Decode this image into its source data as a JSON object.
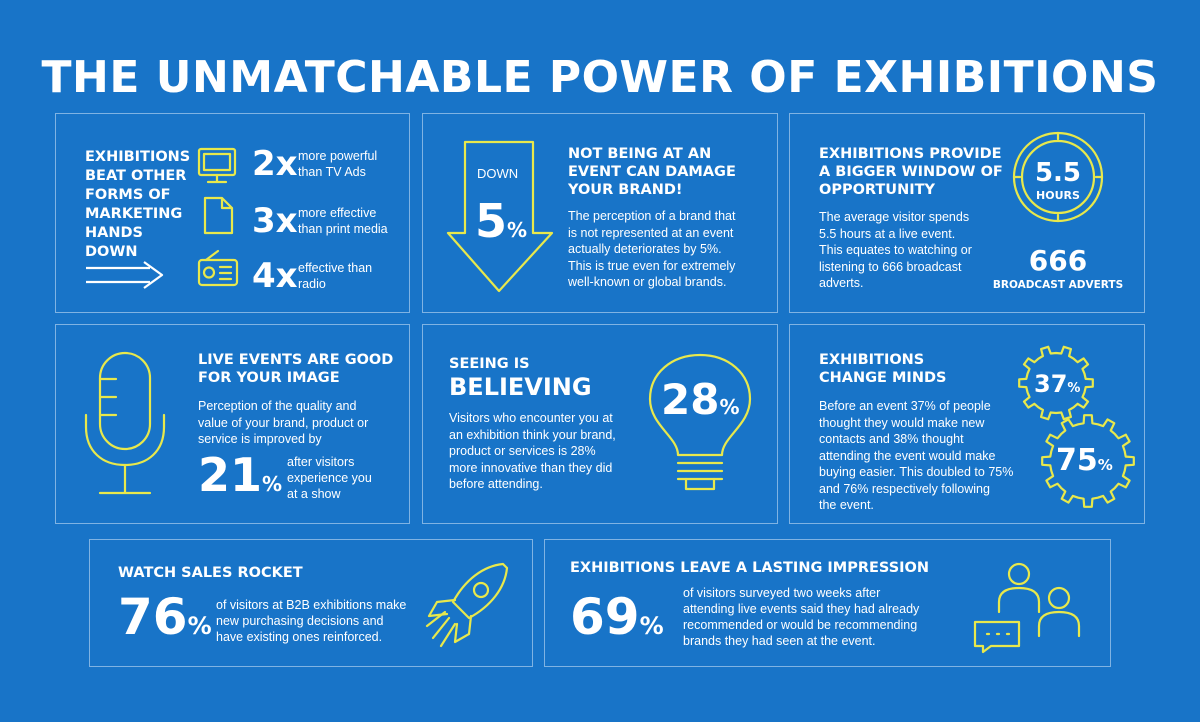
{
  "title": "THE UNMATCHABLE POWER OF EXHIBITIONS",
  "colors": {
    "background": "#1874c8",
    "accent": "#e8e84c",
    "text": "#ffffff",
    "border": "#7fb3e3"
  },
  "panel1": {
    "heading": [
      "EXHIBITIONS",
      "BEAT OTHER",
      "FORMS OF",
      "MARKETING",
      "HANDS",
      "DOWN"
    ],
    "rows": [
      {
        "icon": "monitor-icon",
        "value": "2x",
        "text": [
          "more powerful",
          "than TV Ads"
        ]
      },
      {
        "icon": "document-icon",
        "value": "3x",
        "text": [
          "more effective",
          "than print media"
        ]
      },
      {
        "icon": "radio-icon",
        "value": "4x",
        "text": [
          "effective than",
          "radio"
        ]
      }
    ]
  },
  "panel2": {
    "arrow_label": "DOWN",
    "value": "5",
    "unit": "%",
    "heading": [
      "NOT BEING AT AN",
      "EVENT CAN DAMAGE",
      "YOUR BRAND!"
    ],
    "text": [
      "The perception of a brand that",
      "is not represented at an event",
      "actually deteriorates by 5%.",
      "This is true even for extremely",
      "well-known or global brands."
    ]
  },
  "panel3": {
    "heading": [
      "EXHIBITIONS PROVIDE",
      "A BIGGER WINDOW OF",
      "OPPORTUNITY"
    ],
    "text": [
      "The average visitor spends",
      "5.5 hours at a live event.",
      "This equates to watching or",
      "listening to 666 broadcast",
      "adverts."
    ],
    "clock_value": "5.5",
    "clock_unit": "HOURS",
    "adverts_value": "666",
    "adverts_label": "BROADCAST ADVERTS"
  },
  "panel4": {
    "heading": [
      "LIVE EVENTS ARE GOOD",
      "FOR YOUR IMAGE"
    ],
    "text": [
      "Perception of the quality and",
      "value of your brand, product or",
      "service is improved by"
    ],
    "value": "21",
    "unit": "%",
    "value_text": [
      "after visitors",
      "experience you",
      "at a show"
    ]
  },
  "panel5": {
    "heading_small": "SEEING IS",
    "heading_big": "BELIEVING",
    "text": [
      "Visitors who encounter you at",
      "an exhibition think your brand,",
      "product or services is 28%",
      "more innovative than they did",
      "before attending."
    ],
    "value": "28",
    "unit": "%"
  },
  "panel6": {
    "heading": [
      "EXHIBITIONS",
      "CHANGE MINDS"
    ],
    "text": [
      "Before an event 37% of people",
      "thought they would make new",
      "contacts and 38% thought",
      "attending the event would make",
      "buying easier. This doubled to 75%",
      "and 76% respectively following",
      "the event."
    ],
    "gear1_value": "37",
    "gear2_value": "75",
    "unit": "%"
  },
  "panel7": {
    "heading": "WATCH SALES ROCKET",
    "value": "76",
    "unit": "%",
    "text": [
      "of visitors at B2B exhibitions make",
      "new purchasing decisions and",
      "have existing ones reinforced."
    ]
  },
  "panel8": {
    "heading": "EXHIBITIONS LEAVE A LASTING IMPRESSION",
    "value": "69",
    "unit": "%",
    "text": [
      "of visitors surveyed two weeks after",
      "attending live events said they had already",
      "recommended or would be recommending",
      "brands they had seen at the event."
    ]
  }
}
